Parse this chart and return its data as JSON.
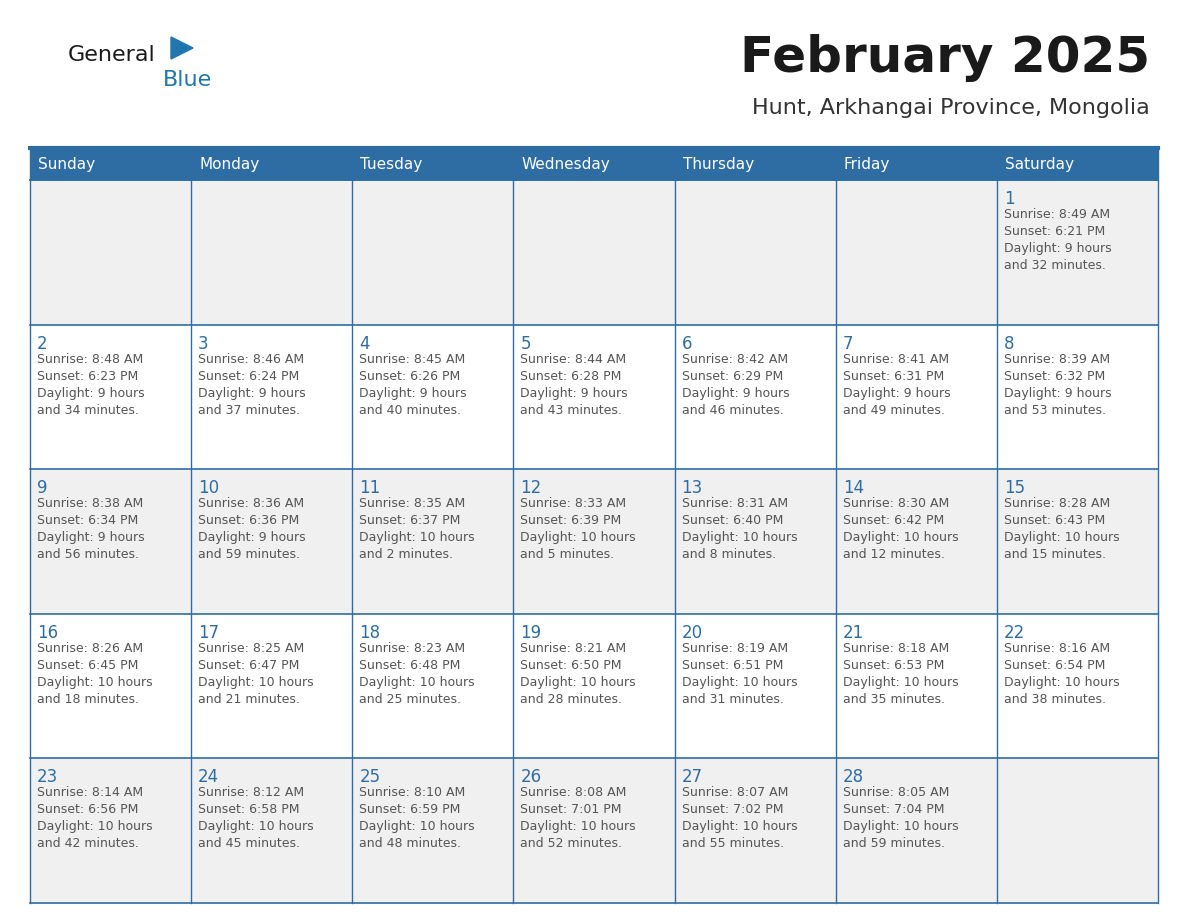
{
  "title": "February 2025",
  "subtitle": "Hunt, Arkhangai Province, Mongolia",
  "days_of_week": [
    "Sunday",
    "Monday",
    "Tuesday",
    "Wednesday",
    "Thursday",
    "Friday",
    "Saturday"
  ],
  "header_bg": "#2E6DA4",
  "header_text_color": "#FFFFFF",
  "cell_bg_odd": "#F0F0F0",
  "cell_bg_even": "#FFFFFF",
  "border_color": "#2E6DA4",
  "day_num_color": "#2E6DA4",
  "text_color": "#555555",
  "logo_black": "#1a1a1a",
  "logo_blue": "#2176AE",
  "calendar_data": [
    [
      {
        "day": null,
        "info": null
      },
      {
        "day": null,
        "info": null
      },
      {
        "day": null,
        "info": null
      },
      {
        "day": null,
        "info": null
      },
      {
        "day": null,
        "info": null
      },
      {
        "day": null,
        "info": null
      },
      {
        "day": 1,
        "info": "Sunrise: 8:49 AM\nSunset: 6:21 PM\nDaylight: 9 hours\nand 32 minutes."
      }
    ],
    [
      {
        "day": 2,
        "info": "Sunrise: 8:48 AM\nSunset: 6:23 PM\nDaylight: 9 hours\nand 34 minutes."
      },
      {
        "day": 3,
        "info": "Sunrise: 8:46 AM\nSunset: 6:24 PM\nDaylight: 9 hours\nand 37 minutes."
      },
      {
        "day": 4,
        "info": "Sunrise: 8:45 AM\nSunset: 6:26 PM\nDaylight: 9 hours\nand 40 minutes."
      },
      {
        "day": 5,
        "info": "Sunrise: 8:44 AM\nSunset: 6:28 PM\nDaylight: 9 hours\nand 43 minutes."
      },
      {
        "day": 6,
        "info": "Sunrise: 8:42 AM\nSunset: 6:29 PM\nDaylight: 9 hours\nand 46 minutes."
      },
      {
        "day": 7,
        "info": "Sunrise: 8:41 AM\nSunset: 6:31 PM\nDaylight: 9 hours\nand 49 minutes."
      },
      {
        "day": 8,
        "info": "Sunrise: 8:39 AM\nSunset: 6:32 PM\nDaylight: 9 hours\nand 53 minutes."
      }
    ],
    [
      {
        "day": 9,
        "info": "Sunrise: 8:38 AM\nSunset: 6:34 PM\nDaylight: 9 hours\nand 56 minutes."
      },
      {
        "day": 10,
        "info": "Sunrise: 8:36 AM\nSunset: 6:36 PM\nDaylight: 9 hours\nand 59 minutes."
      },
      {
        "day": 11,
        "info": "Sunrise: 8:35 AM\nSunset: 6:37 PM\nDaylight: 10 hours\nand 2 minutes."
      },
      {
        "day": 12,
        "info": "Sunrise: 8:33 AM\nSunset: 6:39 PM\nDaylight: 10 hours\nand 5 minutes."
      },
      {
        "day": 13,
        "info": "Sunrise: 8:31 AM\nSunset: 6:40 PM\nDaylight: 10 hours\nand 8 minutes."
      },
      {
        "day": 14,
        "info": "Sunrise: 8:30 AM\nSunset: 6:42 PM\nDaylight: 10 hours\nand 12 minutes."
      },
      {
        "day": 15,
        "info": "Sunrise: 8:28 AM\nSunset: 6:43 PM\nDaylight: 10 hours\nand 15 minutes."
      }
    ],
    [
      {
        "day": 16,
        "info": "Sunrise: 8:26 AM\nSunset: 6:45 PM\nDaylight: 10 hours\nand 18 minutes."
      },
      {
        "day": 17,
        "info": "Sunrise: 8:25 AM\nSunset: 6:47 PM\nDaylight: 10 hours\nand 21 minutes."
      },
      {
        "day": 18,
        "info": "Sunrise: 8:23 AM\nSunset: 6:48 PM\nDaylight: 10 hours\nand 25 minutes."
      },
      {
        "day": 19,
        "info": "Sunrise: 8:21 AM\nSunset: 6:50 PM\nDaylight: 10 hours\nand 28 minutes."
      },
      {
        "day": 20,
        "info": "Sunrise: 8:19 AM\nSunset: 6:51 PM\nDaylight: 10 hours\nand 31 minutes."
      },
      {
        "day": 21,
        "info": "Sunrise: 8:18 AM\nSunset: 6:53 PM\nDaylight: 10 hours\nand 35 minutes."
      },
      {
        "day": 22,
        "info": "Sunrise: 8:16 AM\nSunset: 6:54 PM\nDaylight: 10 hours\nand 38 minutes."
      }
    ],
    [
      {
        "day": 23,
        "info": "Sunrise: 8:14 AM\nSunset: 6:56 PM\nDaylight: 10 hours\nand 42 minutes."
      },
      {
        "day": 24,
        "info": "Sunrise: 8:12 AM\nSunset: 6:58 PM\nDaylight: 10 hours\nand 45 minutes."
      },
      {
        "day": 25,
        "info": "Sunrise: 8:10 AM\nSunset: 6:59 PM\nDaylight: 10 hours\nand 48 minutes."
      },
      {
        "day": 26,
        "info": "Sunrise: 8:08 AM\nSunset: 7:01 PM\nDaylight: 10 hours\nand 52 minutes."
      },
      {
        "day": 27,
        "info": "Sunrise: 8:07 AM\nSunset: 7:02 PM\nDaylight: 10 hours\nand 55 minutes."
      },
      {
        "day": 28,
        "info": "Sunrise: 8:05 AM\nSunset: 7:04 PM\nDaylight: 10 hours\nand 59 minutes."
      },
      {
        "day": null,
        "info": null
      }
    ]
  ]
}
